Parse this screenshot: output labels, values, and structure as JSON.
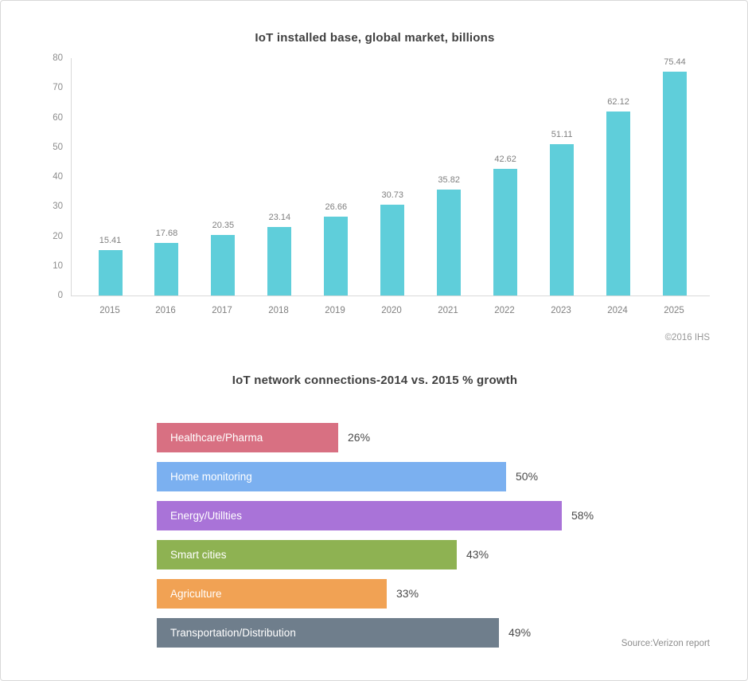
{
  "page": {
    "background": "#ffffff",
    "border_color": "#d8d8d8"
  },
  "chart_data": [
    {
      "type": "bar",
      "title": "IoT installed base, global market, billions",
      "categories": [
        "2015",
        "2016",
        "2017",
        "2018",
        "2019",
        "2020",
        "2021",
        "2022",
        "2023",
        "2024",
        "2025"
      ],
      "values": [
        15.41,
        17.68,
        20.35,
        23.14,
        26.66,
        30.73,
        35.82,
        42.62,
        51.11,
        62.12,
        75.44
      ],
      "value_labels": [
        "15.41",
        "17.68",
        "20.35",
        "23.14",
        "26.66",
        "30.73",
        "35.82",
        "42.62",
        "51.11",
        "62.12",
        "75.44"
      ],
      "ylim": [
        0,
        80
      ],
      "yticks": [
        0,
        10,
        20,
        30,
        40,
        50,
        60,
        70,
        80
      ],
      "bar_color": "#5fceda",
      "grid": false,
      "legend": "none",
      "attribution": "©2016 IHS"
    },
    {
      "type": "bar-horizontal",
      "title": "IoT network connections-2014 vs. 2015 % growth",
      "categories": [
        "Healthcare/Pharma",
        "Home monitoring",
        "Energy/Utillties",
        "Smart cities",
        "Agriculture",
        "Transportation/Distribution"
      ],
      "values": [
        26,
        50,
        58,
        43,
        33,
        49
      ],
      "value_labels": [
        "26%",
        "50%",
        "58%",
        "43%",
        "33%",
        "49%"
      ],
      "bar_colors": [
        "#d87082",
        "#7bb0f0",
        "#a973d8",
        "#8eb252",
        "#f1a254",
        "#6f7e8c"
      ],
      "xlim": [
        0,
        58
      ],
      "grid": false,
      "legend": "none",
      "source": "Source:Verizon report"
    }
  ]
}
